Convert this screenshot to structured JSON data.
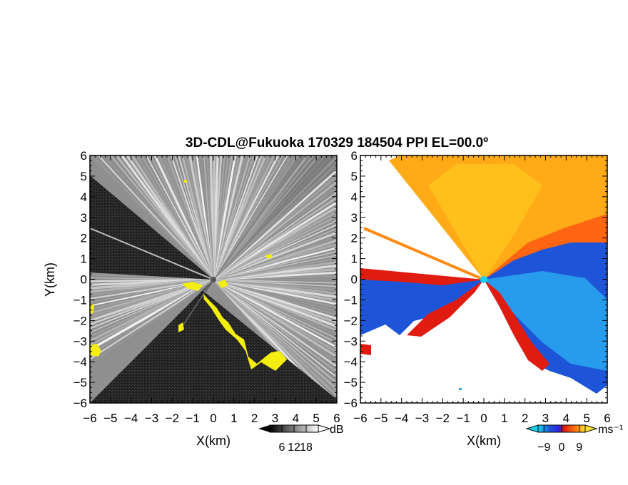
{
  "title": "3D-CDL@Fukuoka 170329 184504 PPI EL=00.0º",
  "colors": {
    "background": "#ffffff",
    "snr_dark": "#262626",
    "snr_bright": "#f2f2f2",
    "flag_yellow": "#f4ee10",
    "vel_approach": [
      "#2aa9f0",
      "#1e55d8",
      "#3020e0"
    ],
    "vel_recede": [
      "#e01c10",
      "#ff7d10",
      "#ffc814"
    ]
  },
  "chart_data": [
    {
      "type": "heatmap",
      "panel": "snr",
      "xlabel": "X(km)",
      "ylabel": "Y(km)",
      "xlim": [
        -6,
        6
      ],
      "ylim": [
        -6,
        6
      ],
      "xticks": [
        "−6",
        "−5",
        "−4",
        "−3",
        "−2",
        "−1",
        "0",
        "1",
        "2",
        "3",
        "4",
        "5",
        "6"
      ],
      "yticks": [
        "6",
        "5",
        "4",
        "3",
        "2",
        "1",
        "0",
        "−1",
        "−2",
        "−3",
        "−4",
        "−5",
        "−6"
      ],
      "colorbar": {
        "unit": "dB",
        "ticks": [
          "6",
          "12",
          "18"
        ],
        "range": [
          0,
          24
        ],
        "colormap": "gray"
      },
      "lidar_origin": [
        0,
        0
      ],
      "dark_sectors_deg": [
        [
          135,
          172
        ],
        [
          215,
          312
        ]
      ],
      "grid": false
    },
    {
      "type": "heatmap",
      "panel": "radial_velocity",
      "xlabel": "X(km)",
      "ylabel": "",
      "xlim": [
        -6,
        6
      ],
      "ylim": [
        -6,
        6
      ],
      "xticks": [
        "−6",
        "−5",
        "−4",
        "−3",
        "−2",
        "−1",
        "0",
        "1",
        "2",
        "3",
        "4",
        "5",
        "6"
      ],
      "yticks": [
        "6",
        "5",
        "4",
        "3",
        "2",
        "1",
        "0",
        "−1",
        "−2",
        "−3",
        "−4",
        "−5",
        "−6"
      ],
      "colorbar": {
        "unit": "ms⁻¹",
        "ticks": [
          "−9",
          "0",
          "9"
        ],
        "range": [
          -12,
          12
        ],
        "colormap": "blue-red"
      },
      "lidar_origin": [
        0,
        0
      ],
      "grid": false
    }
  ]
}
